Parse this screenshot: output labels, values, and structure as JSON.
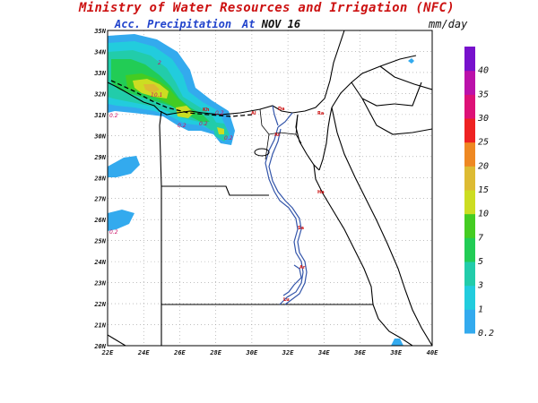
{
  "title": "Ministry of Water Resources and Irrigation (NFC)",
  "subtitle": {
    "label": "Acc. Precipitation",
    "at": "At",
    "date": "NOV 16"
  },
  "units": "mm/day",
  "map": {
    "lon_labels": [
      "22E",
      "24E",
      "26E",
      "28E",
      "30E",
      "32E",
      "34E",
      "36E",
      "38E",
      "40E"
    ],
    "lat_labels": [
      "35N",
      "34N",
      "33N",
      "32N",
      "31N",
      "30N",
      "29N",
      "28N",
      "27N",
      "26N",
      "25N",
      "24N",
      "23N",
      "22N",
      "21N",
      "20N"
    ],
    "grid": "dotted",
    "value_labels": [
      "0.2",
      "2",
      "10.1",
      "0.2",
      "0.2",
      "0.2",
      "0.2",
      "0.2"
    ],
    "city_labels": [
      "Al",
      "Da",
      "Kh",
      "Ra",
      "Ar",
      "Ha",
      "Sa",
      "Ar",
      "Lu"
    ]
  },
  "colorbar": {
    "levels": [
      "0.2",
      "1",
      "3",
      "5",
      "7",
      "10",
      "15",
      "20",
      "25",
      "30",
      "35",
      "40"
    ],
    "colors": [
      "#33aaee",
      "#22ccdd",
      "#22ccaa",
      "#22cc55",
      "#44cc22",
      "#ccdd22",
      "#ddbb33",
      "#ee8822",
      "#ee2222",
      "#dd1177",
      "#bb11aa",
      "#7711cc"
    ]
  }
}
